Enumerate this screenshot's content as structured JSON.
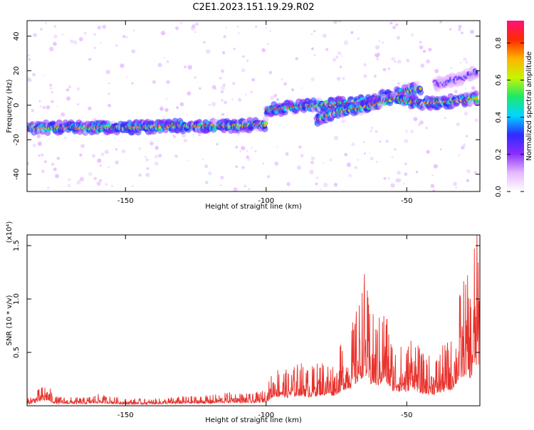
{
  "page_title": "C2E1.2023.151.19.29.R02",
  "colors": {
    "snr_line": "#e8322d",
    "axis": "#000000",
    "colormap": [
      "#ffffff",
      "#e4b8ff",
      "#8b2cff",
      "#2f2bff",
      "#00d7ff",
      "#1ee86a",
      "#c8f500",
      "#ffb300",
      "#ff2a00",
      "#ff0f7a"
    ]
  },
  "chart_data": [
    {
      "type": "heatmap",
      "title": "",
      "xlabel": "Height of straight line (km)",
      "ylabel": "Frequency (Hz)",
      "xlim": [
        -185,
        -24
      ],
      "ylim": [
        -50,
        49
      ],
      "xticks": [
        -150,
        -100,
        -50
      ],
      "yticks": [
        -40,
        -20,
        0,
        20,
        40
      ],
      "grid": false,
      "colorbar": {
        "label": "Normalized spectral amplitude",
        "range": [
          0.0,
          0.92
        ],
        "ticks": [
          0.0,
          0.2,
          0.4,
          0.6,
          0.8
        ]
      },
      "ridges": [
        {
          "name": "main",
          "points": [
            [
              -185,
              -13
            ],
            [
              -170,
              -13
            ],
            [
              -150,
              -13
            ],
            [
              -130,
              -12
            ],
            [
              -110,
              -12
            ],
            [
              -100,
              -11
            ]
          ]
        },
        {
          "name": "upper_branch",
          "points": [
            [
              -100,
              -3
            ],
            [
              -90,
              -1
            ],
            [
              -80,
              0
            ],
            [
              -65,
              2
            ],
            [
              -50,
              8
            ],
            [
              -45,
              10
            ]
          ]
        },
        {
          "name": "lower_branch",
          "points": [
            [
              -82,
              -8
            ],
            [
              -75,
              -4
            ],
            [
              -65,
              -1
            ],
            [
              -55,
              4
            ],
            [
              -45,
              1
            ],
            [
              -35,
              2
            ],
            [
              -25,
              4
            ]
          ]
        },
        {
          "name": "faint_upper",
          "points": [
            [
              -40,
              12
            ],
            [
              -32,
              15
            ],
            [
              -25,
              19
            ]
          ]
        }
      ]
    },
    {
      "type": "line",
      "title": "",
      "xlabel": "Height of straight line (km)",
      "ylabel": "SNR (10 * v/v)",
      "y_multiplier": "(x10⁴)",
      "xlim": [
        -185,
        -24
      ],
      "ylim": [
        0,
        1.6
      ],
      "xticks": [
        -150,
        -100,
        -50
      ],
      "yticks": [
        0.5,
        1.0,
        1.5
      ],
      "ytick_labels": [
        "0.5",
        "1.0",
        "1.5"
      ],
      "grid": false,
      "envelope": [
        [
          -185,
          0.06
        ],
        [
          -182,
          0.12
        ],
        [
          -178,
          0.2
        ],
        [
          -175,
          0.08
        ],
        [
          -165,
          0.07
        ],
        [
          -160,
          0.1
        ],
        [
          -150,
          0.06
        ],
        [
          -140,
          0.06
        ],
        [
          -130,
          0.08
        ],
        [
          -120,
          0.09
        ],
        [
          -112,
          0.12
        ],
        [
          -105,
          0.1
        ],
        [
          -100,
          0.14
        ],
        [
          -97,
          0.35
        ],
        [
          -92,
          0.3
        ],
        [
          -88,
          0.38
        ],
        [
          -85,
          0.32
        ],
        [
          -80,
          0.4
        ],
        [
          -76,
          0.38
        ],
        [
          -72,
          0.6
        ],
        [
          -70,
          0.65
        ],
        [
          -67,
          0.9
        ],
        [
          -65,
          1.16
        ],
        [
          -63,
          0.8
        ],
        [
          -60,
          0.75
        ],
        [
          -58,
          0.92
        ],
        [
          -55,
          0.55
        ],
        [
          -50,
          0.5
        ],
        [
          -48,
          0.7
        ],
        [
          -45,
          0.45
        ],
        [
          -40,
          0.42
        ],
        [
          -36,
          0.55
        ],
        [
          -34,
          0.58
        ],
        [
          -31,
          1.0
        ],
        [
          -29,
          1.15
        ],
        [
          -27,
          1.0
        ],
        [
          -26,
          1.45
        ],
        [
          -25,
          1.5
        ],
        [
          -24,
          1.55
        ]
      ]
    }
  ]
}
